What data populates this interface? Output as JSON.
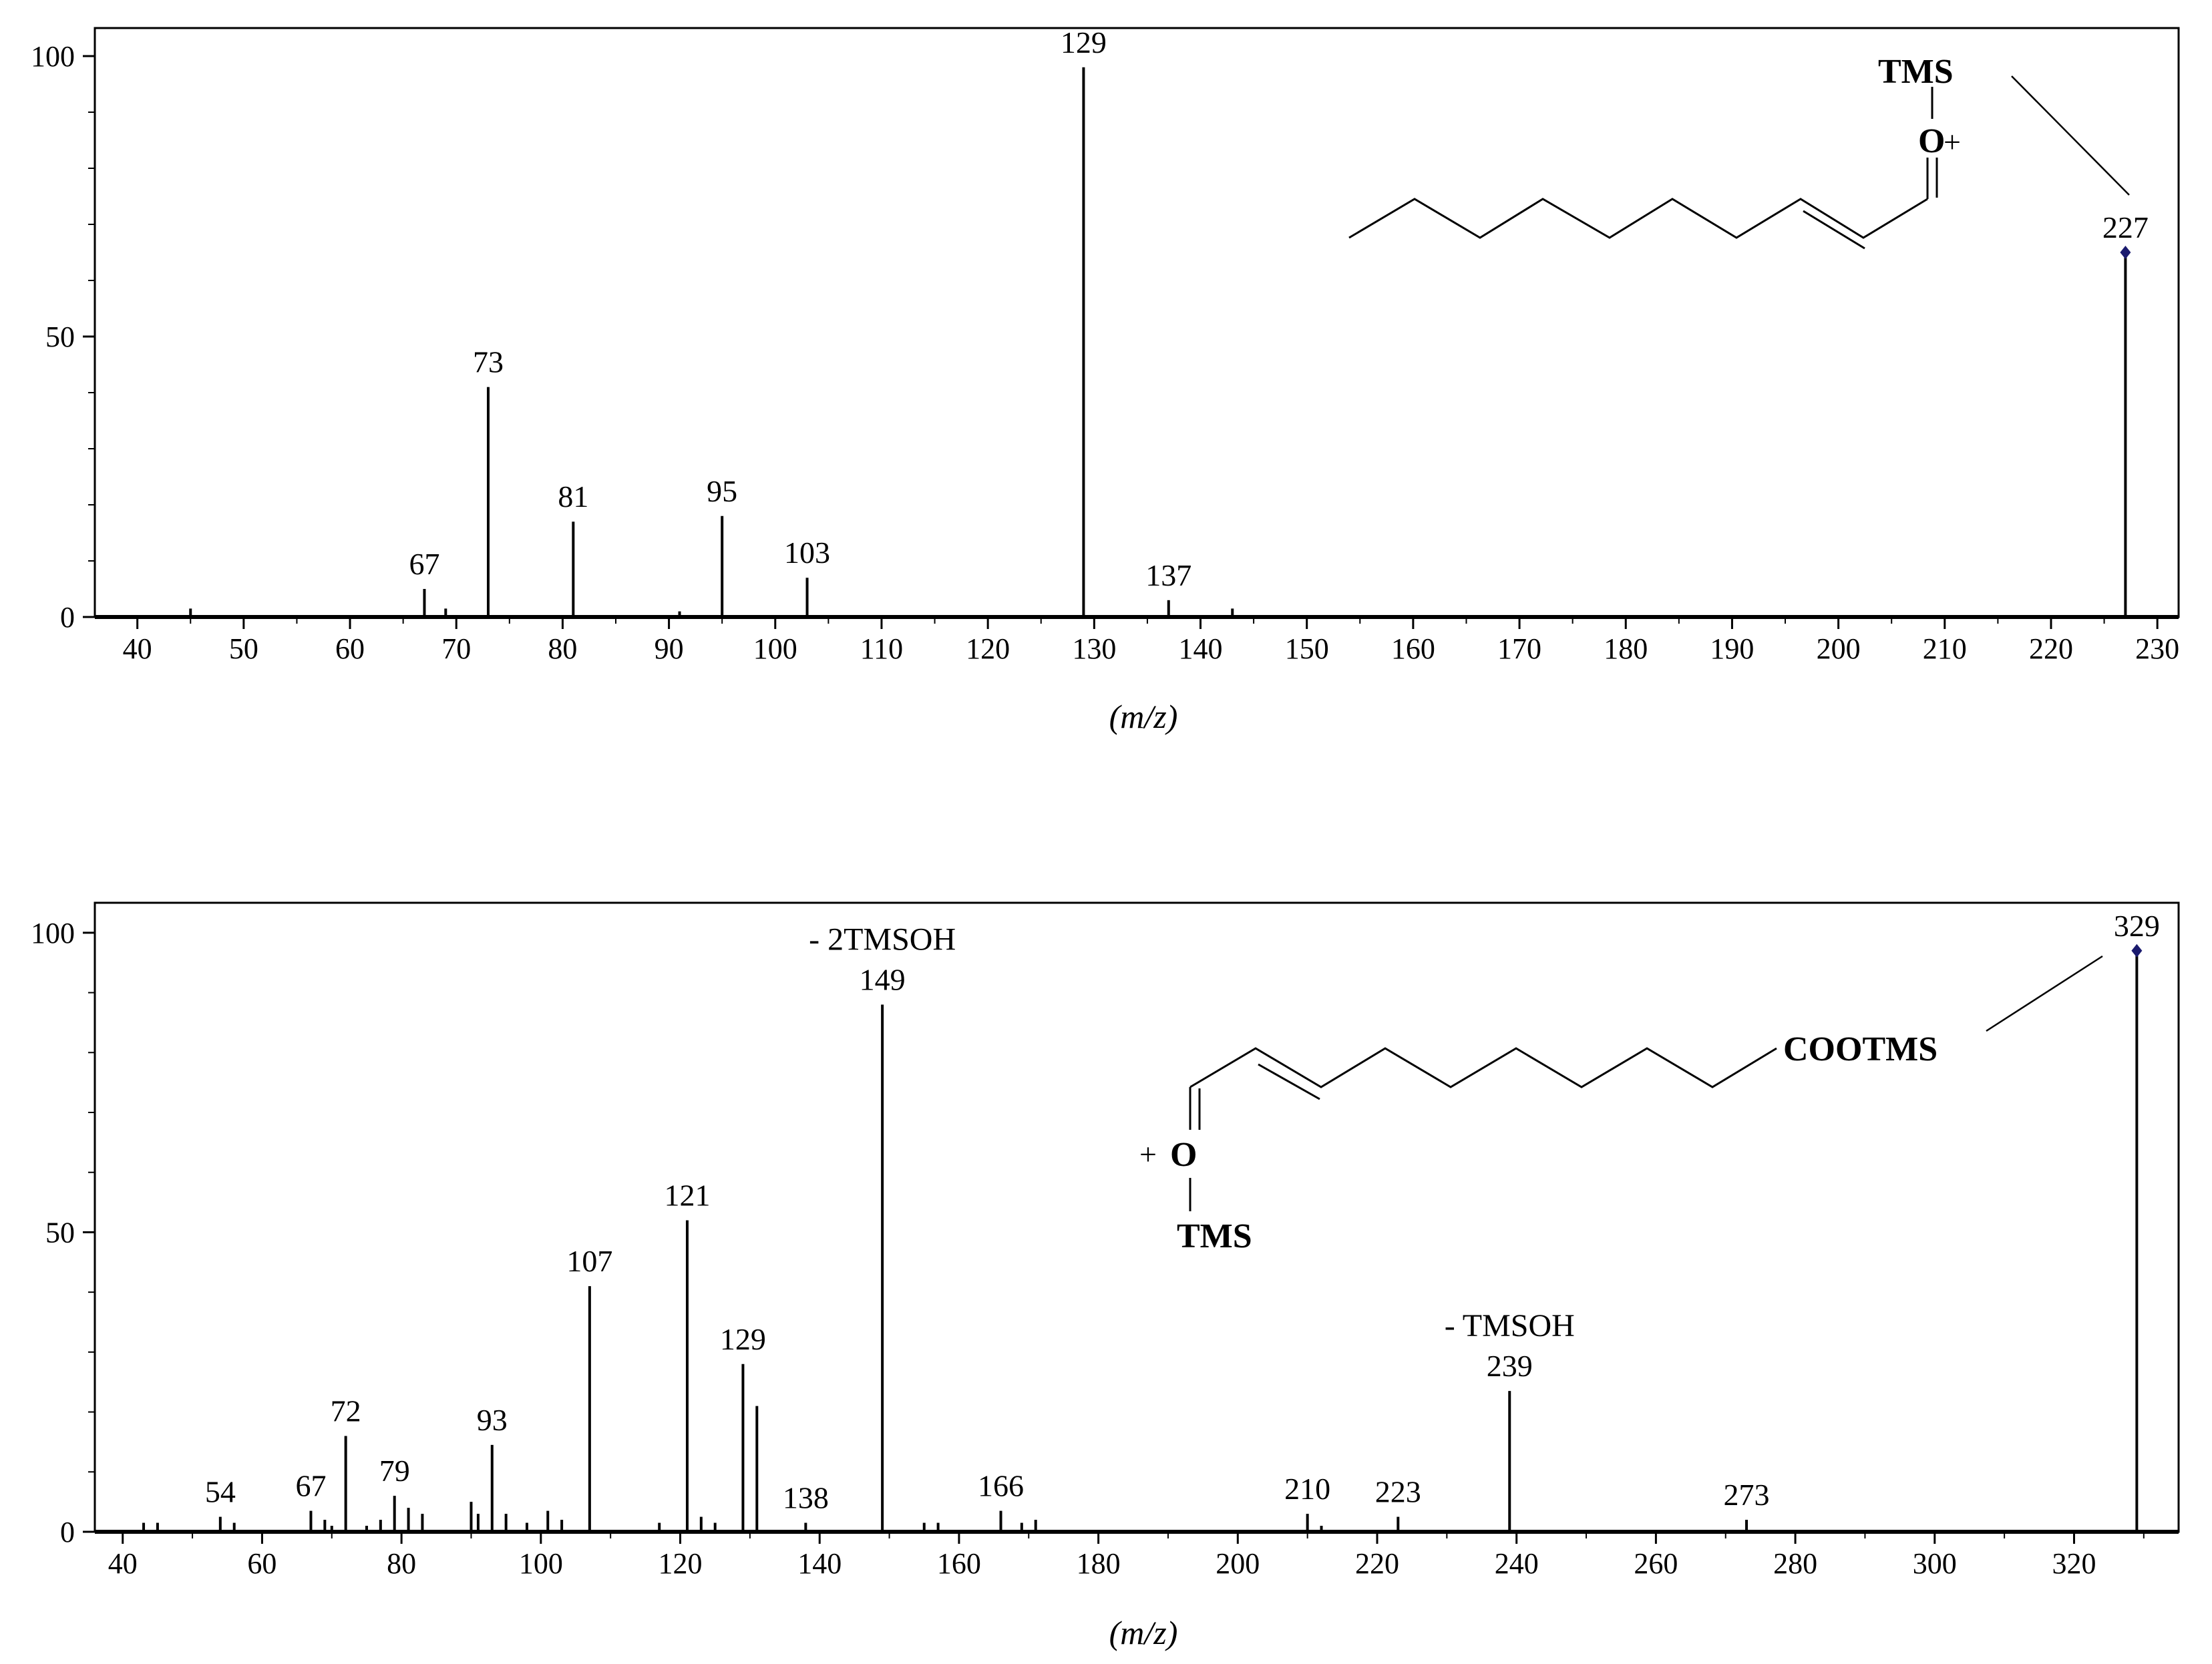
{
  "chart_data": [
    {
      "type": "bar",
      "xlabel": "(m/z)",
      "ylabel": "",
      "xlim": [
        36,
        232
      ],
      "ylim": [
        0,
        105
      ],
      "x_ticks": [
        40,
        50,
        60,
        70,
        80,
        90,
        100,
        110,
        120,
        130,
        140,
        150,
        160,
        170,
        180,
        190,
        200,
        210,
        220,
        230
      ],
      "y_ticks": [
        0,
        50,
        100
      ],
      "peaks": [
        {
          "x": 45,
          "y": 1.5
        },
        {
          "x": 67,
          "y": 5
        },
        {
          "x": 69,
          "y": 1.5
        },
        {
          "x": 73,
          "y": 41
        },
        {
          "x": 81,
          "y": 17
        },
        {
          "x": 91,
          "y": 1
        },
        {
          "x": 95,
          "y": 18
        },
        {
          "x": 103,
          "y": 7
        },
        {
          "x": 129,
          "y": 98
        },
        {
          "x": 137,
          "y": 3
        },
        {
          "x": 143,
          "y": 1.5
        },
        {
          "x": 227,
          "y": 65
        }
      ],
      "peak_labels": [
        {
          "x": 67,
          "y": 5,
          "text": "67"
        },
        {
          "x": 73,
          "y": 41,
          "text": "73"
        },
        {
          "x": 81,
          "y": 17,
          "text": "81"
        },
        {
          "x": 95,
          "y": 18,
          "text": "95"
        },
        {
          "x": 103,
          "y": 7,
          "text": "103"
        },
        {
          "x": 129,
          "y": 98,
          "text": "129"
        },
        {
          "x": 137,
          "y": 3,
          "text": "137"
        },
        {
          "x": 227,
          "y": 65,
          "text": "227"
        }
      ],
      "marker": {
        "x": 227,
        "y": 65
      },
      "annotations": [],
      "structure_labels": {
        "top": "TMS",
        "oxygen": "O",
        "charge": "+"
      }
    },
    {
      "type": "bar",
      "xlabel": "(m/z)",
      "ylabel": "",
      "xlim": [
        36,
        335
      ],
      "ylim": [
        0,
        105
      ],
      "x_ticks": [
        40,
        60,
        80,
        100,
        120,
        140,
        160,
        180,
        200,
        220,
        240,
        260,
        280,
        300,
        320
      ],
      "y_ticks": [
        0,
        50,
        100
      ],
      "peaks": [
        {
          "x": 43,
          "y": 1.5
        },
        {
          "x": 45,
          "y": 1.5
        },
        {
          "x": 54,
          "y": 2.5
        },
        {
          "x": 56,
          "y": 1.5
        },
        {
          "x": 67,
          "y": 3.5
        },
        {
          "x": 69,
          "y": 2
        },
        {
          "x": 70,
          "y": 1
        },
        {
          "x": 72,
          "y": 16
        },
        {
          "x": 75,
          "y": 1
        },
        {
          "x": 77,
          "y": 2
        },
        {
          "x": 79,
          "y": 6
        },
        {
          "x": 81,
          "y": 4
        },
        {
          "x": 83,
          "y": 3
        },
        {
          "x": 90,
          "y": 5
        },
        {
          "x": 91,
          "y": 3
        },
        {
          "x": 93,
          "y": 14.5
        },
        {
          "x": 95,
          "y": 3
        },
        {
          "x": 98,
          "y": 1.5
        },
        {
          "x": 101,
          "y": 3.5
        },
        {
          "x": 103,
          "y": 2
        },
        {
          "x": 107,
          "y": 41
        },
        {
          "x": 117,
          "y": 1.5
        },
        {
          "x": 121,
          "y": 52
        },
        {
          "x": 123,
          "y": 2.5
        },
        {
          "x": 125,
          "y": 1.5
        },
        {
          "x": 129,
          "y": 28
        },
        {
          "x": 131,
          "y": 21
        },
        {
          "x": 138,
          "y": 1.5
        },
        {
          "x": 149,
          "y": 88
        },
        {
          "x": 155,
          "y": 1.5
        },
        {
          "x": 157,
          "y": 1.5
        },
        {
          "x": 166,
          "y": 3.5
        },
        {
          "x": 169,
          "y": 1.5
        },
        {
          "x": 171,
          "y": 2
        },
        {
          "x": 210,
          "y": 3
        },
        {
          "x": 212,
          "y": 1
        },
        {
          "x": 223,
          "y": 2.5
        },
        {
          "x": 239,
          "y": 23.5
        },
        {
          "x": 273,
          "y": 2
        },
        {
          "x": 329,
          "y": 97
        }
      ],
      "peak_labels": [
        {
          "x": 54,
          "y": 2.5,
          "text": "54"
        },
        {
          "x": 67,
          "y": 3.5,
          "text": "67"
        },
        {
          "x": 72,
          "y": 16,
          "text": "72"
        },
        {
          "x": 79,
          "y": 6,
          "text": "79"
        },
        {
          "x": 93,
          "y": 14.5,
          "text": "93"
        },
        {
          "x": 107,
          "y": 41,
          "text": "107"
        },
        {
          "x": 121,
          "y": 52,
          "text": "121"
        },
        {
          "x": 129,
          "y": 28,
          "text": "129"
        },
        {
          "x": 138,
          "y": 1.5,
          "text": "138"
        },
        {
          "x": 149,
          "y": 88,
          "text": "149"
        },
        {
          "x": 166,
          "y": 3.5,
          "text": "166"
        },
        {
          "x": 210,
          "y": 3,
          "text": "210"
        },
        {
          "x": 223,
          "y": 2.5,
          "text": "223"
        },
        {
          "x": 239,
          "y": 23.5,
          "text": "239"
        },
        {
          "x": 273,
          "y": 2,
          "text": "273"
        },
        {
          "x": 329,
          "y": 97,
          "text": "329"
        }
      ],
      "marker": {
        "x": 329,
        "y": 97
      },
      "annotations": [
        {
          "x": 149,
          "text": "- 2TMSOH"
        },
        {
          "x": 239,
          "text": "- TMSOH"
        }
      ],
      "structure_labels": {
        "ester": "COOTMS",
        "charge": "+",
        "oxygen": "O",
        "bottom": "TMS"
      }
    }
  ],
  "colors": {
    "axis": "#000000",
    "marker": "#1a1a6e",
    "line": "#000000"
  }
}
